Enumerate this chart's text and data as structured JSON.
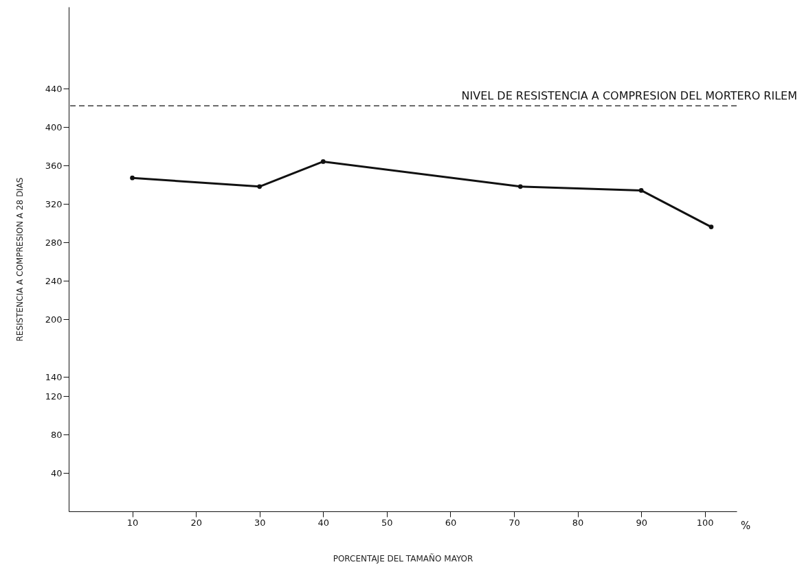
{
  "chart_data": {
    "type": "line",
    "xlabel": "PORCENTAJE DEL TAMAÑO MAYOR",
    "ylabel": "RESISTENCIA A COMPRESION A 28 DIAS",
    "x": [
      10,
      30,
      40,
      71,
      90,
      101
    ],
    "series": [
      {
        "color": "#111111",
        "values": [
          347,
          338,
          364,
          338,
          334,
          296
        ]
      }
    ],
    "xlim": [
      0,
      105
    ],
    "xticks": [
      10,
      20,
      30,
      40,
      50,
      60,
      70,
      80,
      90,
      100
    ],
    "ylim": [
      0,
      525
    ],
    "yticks": [
      40,
      80,
      120,
      140,
      200,
      240,
      280,
      320,
      360,
      400,
      440
    ],
    "marker": "circle",
    "line_style": "solid",
    "grid": false,
    "ref_lines": [
      {
        "axis": "y",
        "value": 422,
        "label": "NIVEL DE RESISTENCIA A COMPRESION DEL MORTERO RILEM",
        "line_style": "dashed",
        "color": "#111111"
      }
    ],
    "annotations": [
      "%"
    ]
  }
}
